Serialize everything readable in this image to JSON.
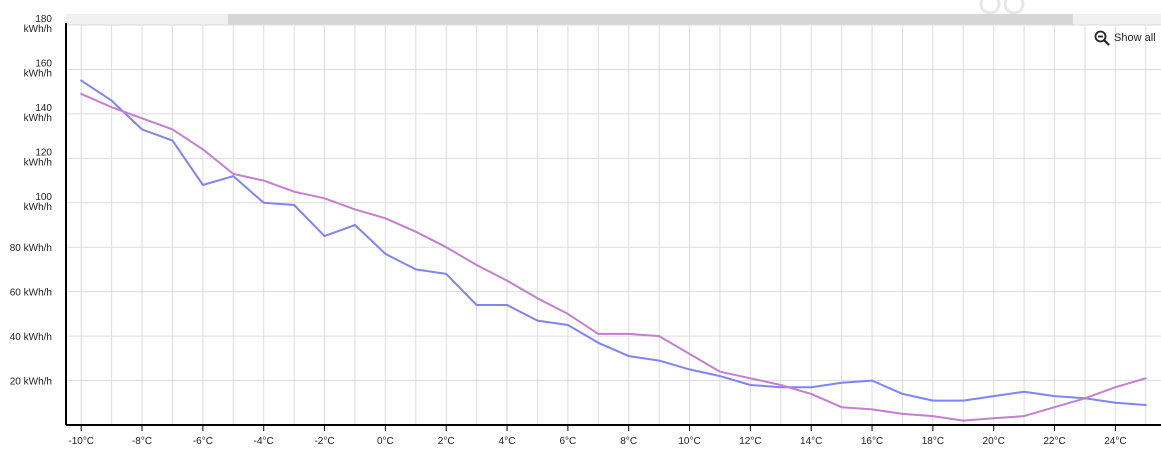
{
  "colors": {
    "series_1": "#7f84f6",
    "series_2": "#c47fd1",
    "grid": "#dddddd",
    "axis": "#000000",
    "scrollbar_track": "#f0f0f0",
    "scrollbar_thumb": "#d6d6d6"
  },
  "controls": {
    "show_all_label": "Show all",
    "show_all_icon": "zoom-out-icon"
  },
  "chart_data": {
    "type": "line",
    "title": "",
    "xlabel": "",
    "ylabel": "",
    "x_unit": "°C",
    "y_unit": "kWh/h",
    "xlim": [
      -10.5,
      25.5
    ],
    "ylim": [
      0,
      180
    ],
    "grid": true,
    "x": [
      -10,
      -9,
      -8,
      -7,
      -6,
      -5,
      -4,
      -3,
      -2,
      -1,
      0,
      1,
      2,
      3,
      4,
      5,
      6,
      7,
      8,
      9,
      10,
      11,
      12,
      13,
      14,
      15,
      16,
      17,
      18,
      19,
      20,
      21,
      22,
      23,
      24,
      25
    ],
    "series": [
      {
        "color": "#7f84f6",
        "values": [
          155,
          146,
          133,
          128,
          108,
          112,
          100,
          99,
          85,
          90,
          77,
          70,
          68,
          54,
          54,
          47,
          45,
          37,
          31,
          29,
          25,
          22,
          18,
          17,
          17,
          19,
          20,
          14,
          11,
          11,
          13,
          15,
          13,
          12,
          10,
          9
        ]
      },
      {
        "color": "#c47fd1",
        "values": [
          149,
          143,
          138,
          133,
          124,
          113,
          110,
          105,
          102,
          97,
          93,
          87,
          80,
          72,
          65,
          57,
          50,
          41,
          41,
          40,
          32,
          24,
          21,
          18,
          14,
          8,
          7,
          5,
          4,
          2,
          3,
          4,
          8,
          12,
          17,
          21
        ]
      }
    ],
    "y_ticks": [
      {
        "value": 20,
        "lines": [
          "20 kWh/h"
        ]
      },
      {
        "value": 40,
        "lines": [
          "40 kWh/h"
        ]
      },
      {
        "value": 60,
        "lines": [
          "60 kWh/h"
        ]
      },
      {
        "value": 80,
        "lines": [
          "80 kWh/h"
        ]
      },
      {
        "value": 100,
        "lines": [
          "100",
          "kWh/h"
        ]
      },
      {
        "value": 120,
        "lines": [
          "120",
          "kWh/h"
        ]
      },
      {
        "value": 140,
        "lines": [
          "140",
          "kWh/h"
        ]
      },
      {
        "value": 160,
        "lines": [
          "160",
          "kWh/h"
        ]
      },
      {
        "value": 180,
        "lines": [
          "180",
          "kWh/h"
        ]
      }
    ],
    "x_tick_labels": [
      "-10°C",
      "-8°C",
      "-6°C",
      "-4°C",
      "-2°C",
      "0°C",
      "2°C",
      "4°C",
      "6°C",
      "8°C",
      "10°C",
      "12°C",
      "14°C",
      "16°C",
      "18°C",
      "20°C",
      "22°C",
      "24°C"
    ],
    "x_tick_values": [
      -10,
      -8,
      -6,
      -4,
      -2,
      0,
      2,
      4,
      6,
      8,
      10,
      12,
      14,
      16,
      18,
      20,
      22,
      24
    ],
    "x_grid_step": 1
  }
}
